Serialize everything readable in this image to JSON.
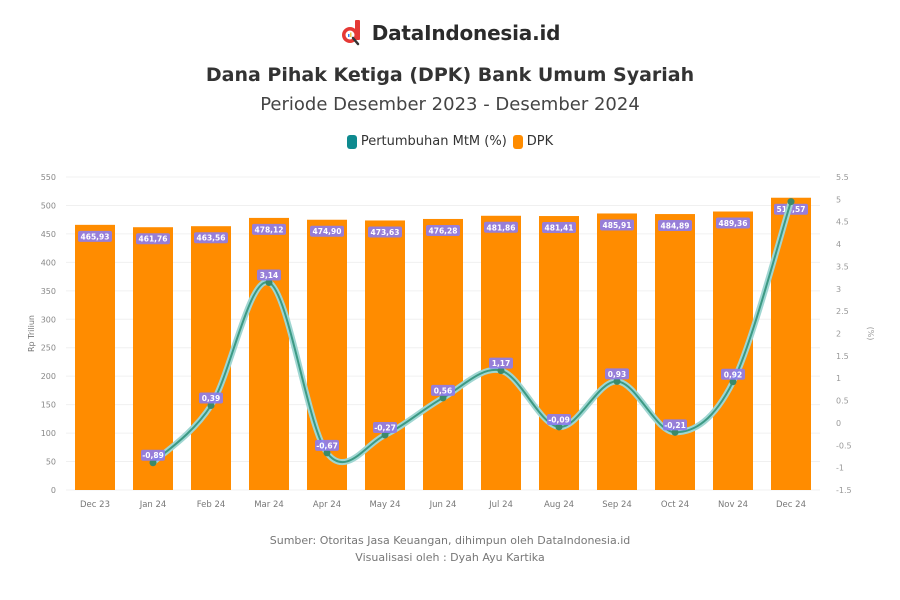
{
  "brand": {
    "name": "DataIndonesia.id",
    "logo_icon": "magnifier-d-logo-icon",
    "logo_color": "#e53935"
  },
  "title": "Dana Pihak Ketiga (DPK) Bank Umum Syariah",
  "subtitle": "Periode Desember 2023 - Desember 2024",
  "legend": [
    {
      "label": "Pertumbuhan MtM (%)",
      "color": "#0e8a8f"
    },
    {
      "label": "DPK",
      "color": "#ff8c00"
    }
  ],
  "source": {
    "line1": "Sumber: Otoritas Jasa Keuangan, dihimpun oleh DataIndonesia.id",
    "line2": "Visualisasi oleh : Dyah Ayu Kartika"
  },
  "chart_data": {
    "type": "bar",
    "title": "Dana Pihak Ketiga (DPK) Bank Umum Syariah",
    "subtitle": "Periode Desember 2023 - Desember 2024",
    "xlabel": "",
    "ylabel": "Rp Triliun",
    "y2label": "(%)",
    "ylim": [
      0,
      550
    ],
    "y_ticks": [
      0,
      50,
      100,
      150,
      200,
      250,
      300,
      350,
      400,
      450,
      500,
      550
    ],
    "y2lim": [
      -1.5,
      5.5
    ],
    "y2_ticks": [
      -1.5,
      -1,
      -0.5,
      0,
      0.5,
      1,
      1.5,
      2,
      2.5,
      3,
      3.5,
      4,
      4.5,
      5,
      5.5
    ],
    "grid": true,
    "legend_position": "top",
    "categories": [
      "Dec 23",
      "Jan 24",
      "Feb 24",
      "Mar 24",
      "Apr 24",
      "May 24",
      "Jun 24",
      "Jul 24",
      "Aug 24",
      "Sep 24",
      "Oct 24",
      "Nov 24",
      "Dec 24"
    ],
    "series": [
      {
        "name": "DPK",
        "type": "bar",
        "axis": "left",
        "color": "#ff8c00",
        "values": [
          465.93,
          461.76,
          463.56,
          478.12,
          474.9,
          473.63,
          476.28,
          481.86,
          481.41,
          485.91,
          484.89,
          489.36,
          513.57
        ]
      },
      {
        "name": "Pertumbuhan MtM (%)",
        "type": "line",
        "axis": "right",
        "color": "#0e8a8f",
        "values": [
          null,
          -0.89,
          0.39,
          3.14,
          -0.67,
          -0.27,
          0.56,
          1.17,
          -0.09,
          0.93,
          -0.21,
          0.92,
          4.95
        ]
      }
    ]
  }
}
